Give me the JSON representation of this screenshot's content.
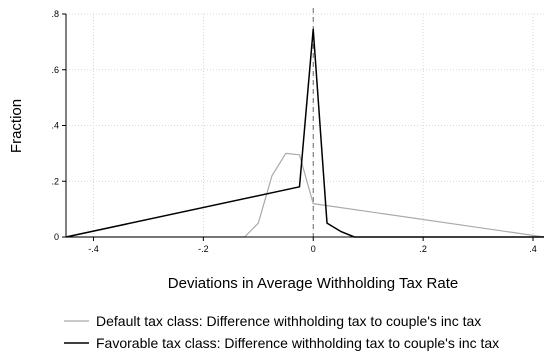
{
  "chart_data": {
    "type": "line",
    "xlabel": "Deviations in Average Withholding Tax Rate",
    "ylabel": "Fraction",
    "xlim": [
      -0.45,
      0.42
    ],
    "ylim": [
      0,
      0.8
    ],
    "x_ticks": [
      -0.4,
      -0.2,
      0,
      0.2,
      0.4
    ],
    "x_tick_labels": [
      "-.4",
      "-.2",
      "0",
      ".2",
      ".4"
    ],
    "y_ticks": [
      0,
      0.2,
      0.4,
      0.6,
      0.8
    ],
    "y_tick_labels": [
      "0",
      ".2",
      ".4",
      ".6",
      ".8"
    ],
    "grid": true,
    "vertical_reference_line": {
      "x": 0,
      "style": "dashed"
    },
    "legend_position": "bottom",
    "series": [
      {
        "name": "Default tax class: Difference withholding tax to couple's inc tax",
        "color": "#aaaaaa",
        "x": [
          -0.45,
          -0.125,
          -0.1,
          -0.075,
          -0.05,
          -0.025,
          0,
          0.42
        ],
        "y": [
          0,
          0,
          0.05,
          0.22,
          0.3,
          0.295,
          0.12,
          0
        ]
      },
      {
        "name": "Favorable tax class: Difference withholding tax to couple's inc tax",
        "color": "#000000",
        "x": [
          -0.45,
          -0.025,
          0,
          0.025,
          0.05,
          0.075,
          0.42
        ],
        "y": [
          0,
          0.18,
          0.745,
          0.05,
          0.02,
          0,
          0
        ]
      }
    ]
  }
}
